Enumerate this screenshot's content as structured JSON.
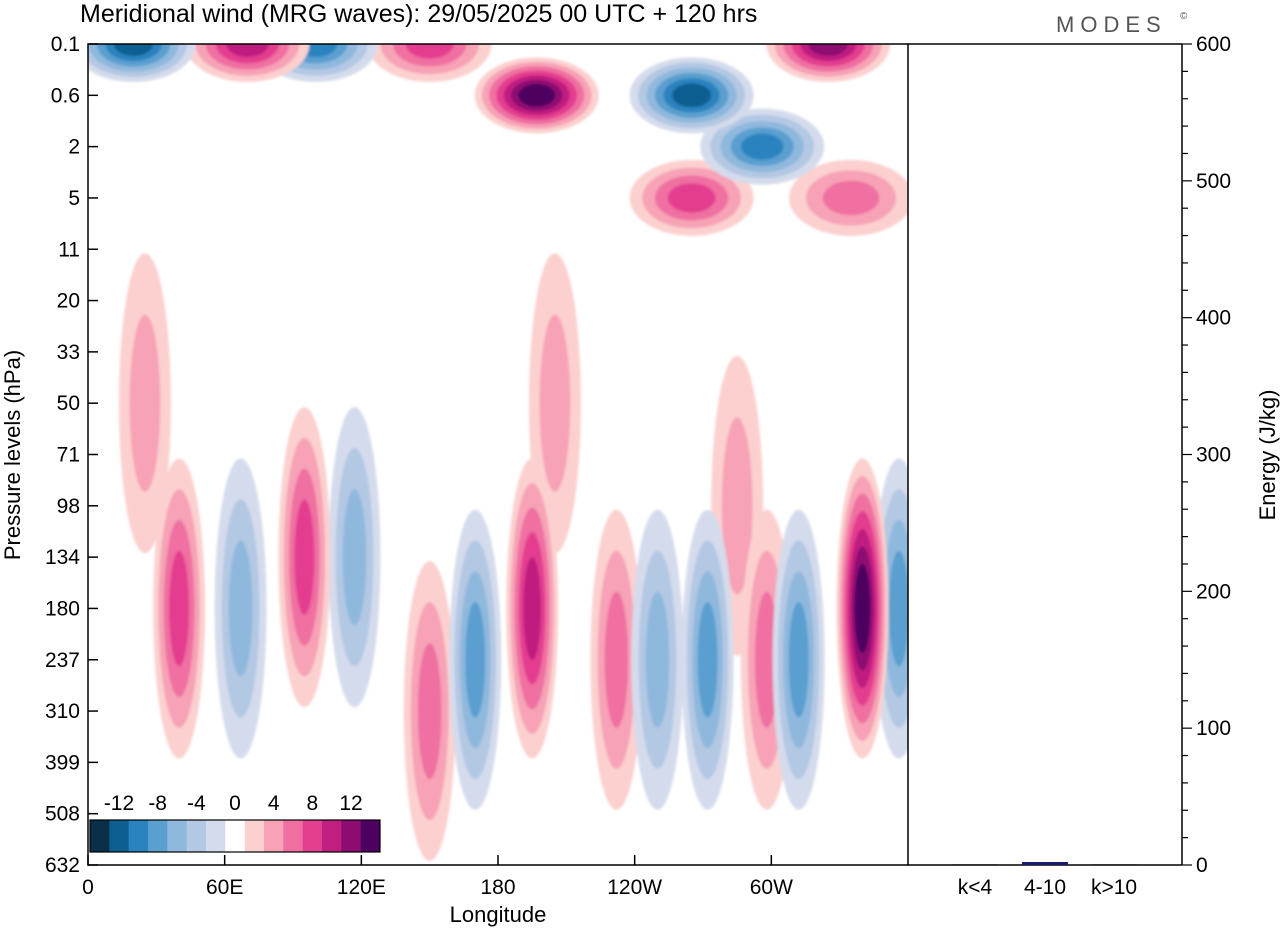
{
  "header": {
    "title": "Meridional wind (MRG waves):  29/05/2025  00 UTC  + 120 hrs",
    "brand": "MODES",
    "brand_mark": "©"
  },
  "chart_data": [
    {
      "type": "heatmap",
      "title": "Meridional wind (MRG waves):  29/05/2025  00 UTC  + 120 hrs",
      "xlabel": "Longitude",
      "ylabel": "Pressure levels (hPa)",
      "x_ticks": [
        "0",
        "60E",
        "120E",
        "180",
        "120W",
        "60W"
      ],
      "x_tick_values": [
        0,
        60,
        120,
        180,
        240,
        300
      ],
      "xlim": [
        0,
        360
      ],
      "y_ticks": [
        "0.1",
        "0.6",
        "2",
        "5",
        "11",
        "20",
        "33",
        "50",
        "71",
        "98",
        "134",
        "180",
        "237",
        "310",
        "399",
        "508",
        "632"
      ],
      "y_axis": "pressure levels, top to bottom",
      "colorbar": {
        "tick_labels": [
          "-12",
          "-8",
          "-4",
          "0",
          "4",
          "8",
          "12"
        ],
        "tick_values": [
          -12,
          -8,
          -4,
          0,
          4,
          8,
          12
        ],
        "levels": [
          -14,
          -12,
          -10,
          -8,
          -6,
          -4,
          -2,
          2,
          4,
          6,
          8,
          10,
          12,
          14
        ],
        "colors": [
          "#0b2f48",
          "#0e5f91",
          "#2a83bf",
          "#5a9fcf",
          "#8fb8dd",
          "#b3c8e3",
          "#d4dbec",
          "#ffffff",
          "#fbd0cf",
          "#f7a2b6",
          "#ef6fa1",
          "#e43e8f",
          "#c01f80",
          "#8e0c72",
          "#4d0060"
        ]
      },
      "features": [
        {
          "lon": 20,
          "p": "0.1",
          "value": -13
        },
        {
          "lon": 70,
          "p": "0.1",
          "value": 11
        },
        {
          "lon": 100,
          "p": "0.1",
          "value": -10
        },
        {
          "lon": 150,
          "p": "0.1",
          "value": 9
        },
        {
          "lon": 197,
          "p": "0.6",
          "value": 14
        },
        {
          "lon": 265,
          "p": "0.6",
          "value": -13
        },
        {
          "lon": 325,
          "p": "0.1",
          "value": 13
        },
        {
          "lon": 265,
          "p": "5",
          "value": 8
        },
        {
          "lon": 296,
          "p": "2",
          "value": -10
        },
        {
          "lon": 335,
          "p": "5",
          "value": 7
        },
        {
          "lon": 40,
          "p": "180",
          "value": 9
        },
        {
          "lon": 67,
          "p": "180",
          "value": -7
        },
        {
          "lon": 95,
          "p": "134",
          "value": 8
        },
        {
          "lon": 117,
          "p": "134",
          "value": -6
        },
        {
          "lon": 150,
          "p": "310",
          "value": 6
        },
        {
          "lon": 170,
          "p": "237",
          "value": -8
        },
        {
          "lon": 195,
          "p": "180",
          "value": 10
        },
        {
          "lon": 250,
          "p": "237",
          "value": -7
        },
        {
          "lon": 232,
          "p": "237",
          "value": 6
        },
        {
          "lon": 272,
          "p": "237",
          "value": -8
        },
        {
          "lon": 298,
          "p": "237",
          "value": 7
        },
        {
          "lon": 312,
          "p": "237",
          "value": -9
        },
        {
          "lon": 340,
          "p": "180",
          "value": 14
        },
        {
          "lon": 356,
          "p": "180",
          "value": -8
        },
        {
          "lon": 205,
          "p": "50",
          "value": 4
        },
        {
          "lon": 285,
          "p": "98",
          "value": 5
        },
        {
          "lon": 25,
          "p": "50",
          "value": 5
        }
      ]
    },
    {
      "type": "bar",
      "ylabel": "Energy (J/kg)",
      "categories": [
        "k<4",
        "4-10",
        "k>10"
      ],
      "values": [
        0,
        2,
        0
      ],
      "ylim": [
        0,
        600
      ],
      "y_ticks": [
        "0",
        "100",
        "200",
        "300",
        "400",
        "500",
        "600"
      ],
      "bar_color": "#1a1a6e"
    }
  ]
}
